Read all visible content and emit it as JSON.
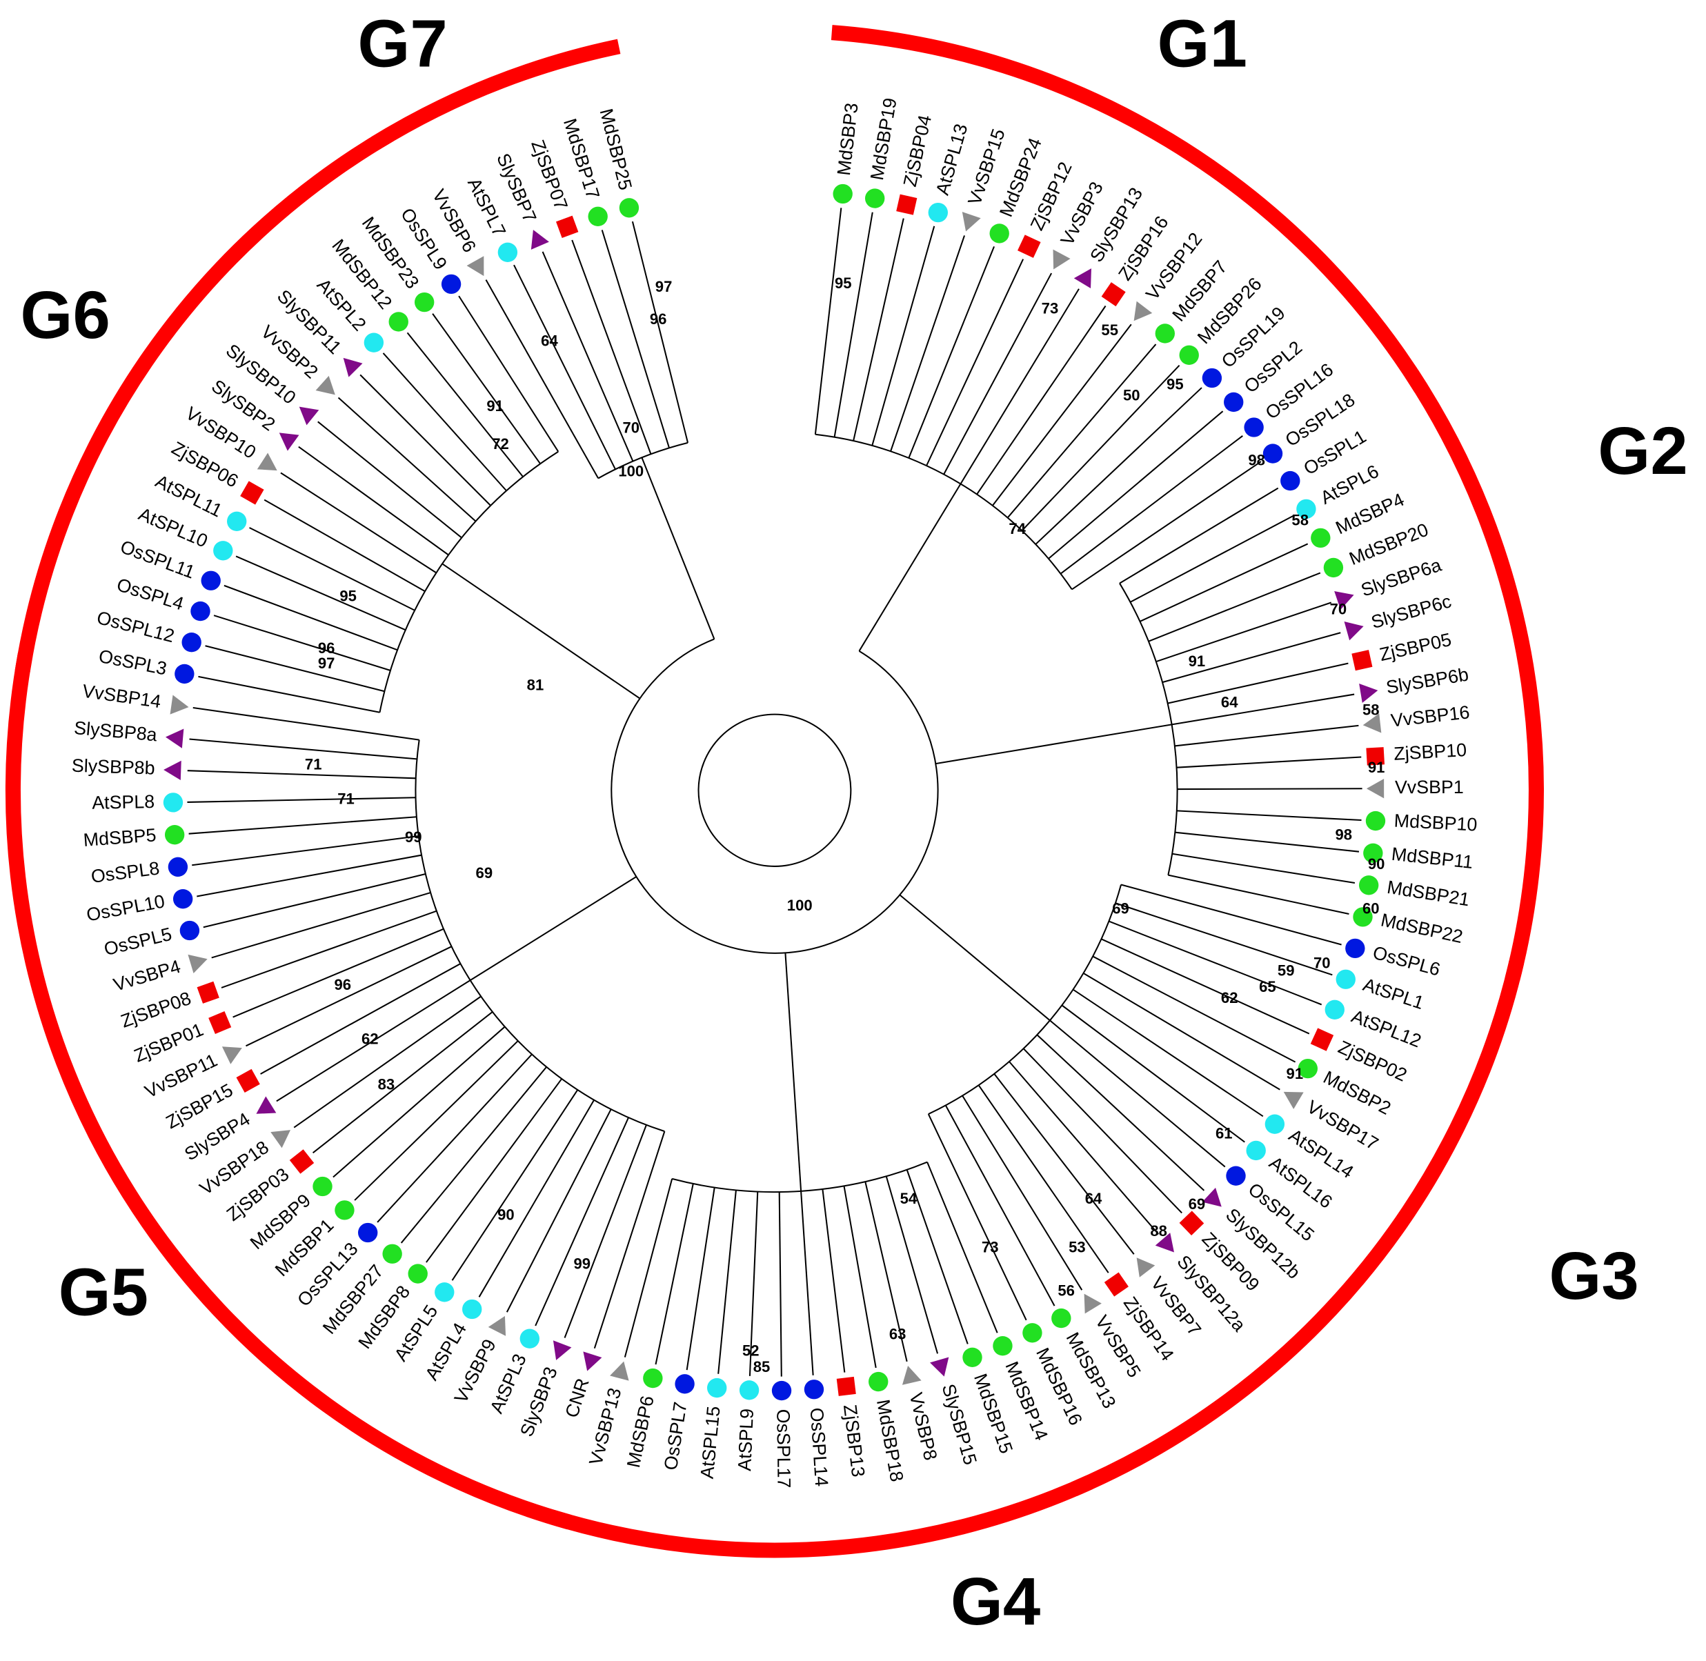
{
  "groups": [
    {
      "label": "G1",
      "leaves": [
        "MdSBP3",
        "MdSBP19",
        "ZjSBP04",
        "AtSPL13",
        "VvSBP15",
        "MdSBP24",
        "ZjSBP12",
        "VvSBP3",
        "SlySBP13",
        "ZjSBP16",
        "VvSBP12",
        "MdSBP7",
        "MdSBP26",
        "OsSPL19",
        "OsSPL2",
        "OsSPL16",
        "OsSPL18"
      ]
    },
    {
      "label": "G2",
      "leaves": [
        "OsSPL1",
        "AtSPL6",
        "MdSBP4",
        "MdSBP20",
        "SlySBP6a",
        "SlySBP6c",
        "ZjSBP05",
        "SlySBP6b",
        "VvSBP16",
        "ZjSBP10",
        "VvSBP1",
        "MdSBP10",
        "MdSBP11",
        "MdSBP21",
        "MdSBP22"
      ]
    },
    {
      "label": "G3",
      "leaves": [
        "OsSPL6",
        "AtSPL1",
        "AtSPL12",
        "ZjSBP02",
        "MdSBP2",
        "VvSBP17",
        "AtSPL14",
        "AtSPL16",
        "OsSPL15",
        "SlySBP12b",
        "ZjSBP09",
        "SlySBP12a",
        "VvSBP7",
        "ZjSBP14",
        "VvSBP5",
        "MdSBP13",
        "MdSBP16"
      ]
    },
    {
      "label": "G4",
      "leaves": [
        "MdSBP14",
        "MdSBP15",
        "SlySBP15",
        "VvSBP8",
        "MdSBP18",
        "ZjSBP13",
        "OsSPL14",
        "OsSPL17",
        "AtSPL9",
        "AtSPL15",
        "OsSPL7",
        "MdSBP6",
        "VvSBP13"
      ]
    },
    {
      "label": "G5",
      "leaves": [
        "CNR",
        "SlySBP3",
        "AtSPL3",
        "VvSBP9",
        "AtSPL4",
        "AtSPL5",
        "MdSBP8",
        "MdSBP27",
        "OsSPL13",
        "MdSBP1",
        "MdSBP9",
        "ZjSBP03",
        "VvSBP18",
        "SlySBP4",
        "ZjSBP15",
        "VvSBP11",
        "ZjSBP01",
        "ZjSBP08",
        "VvSBP4",
        "OsSPL5",
        "OsSPL10",
        "OsSPL8",
        "MdSBP5",
        "AtSPL8",
        "SlySBP8b",
        "SlySBP8a",
        "VvSBP14"
      ]
    },
    {
      "label": "G6",
      "leaves": [
        "OsSPL3",
        "OsSPL12",
        "OsSPL4",
        "OsSPL11",
        "AtSPL10",
        "AtSPL11",
        "ZjSBP06",
        "VvSBP10",
        "SlySBP2",
        "SlySBP10",
        "VvSBP2",
        "SlySBP11",
        "AtSPL2",
        "MdSBP12",
        "MdSBP23",
        "OsSPL9"
      ]
    },
    {
      "label": "G7",
      "leaves": [
        "VvSBP6",
        "AtSPL7",
        "SlySBP7",
        "ZjSBP07",
        "MdSBP17",
        "MdSBP25"
      ]
    }
  ],
  "bootstrap": [
    "95",
    "73",
    "55",
    "50",
    "95",
    "98",
    "74",
    "58",
    "70",
    "91",
    "64",
    "58",
    "91",
    "98",
    "90",
    "69",
    "60",
    "70",
    "59",
    "65",
    "62",
    "91",
    "61",
    "64",
    "69",
    "88",
    "53",
    "56",
    "73",
    "54",
    "63",
    "52",
    "85",
    "99",
    "90",
    "83",
    "62",
    "96",
    "69",
    "99",
    "71",
    "71",
    "97",
    "96",
    "95",
    "81",
    "72",
    "91",
    "64",
    "70",
    "100",
    "100",
    "97",
    "96"
  ]
}
